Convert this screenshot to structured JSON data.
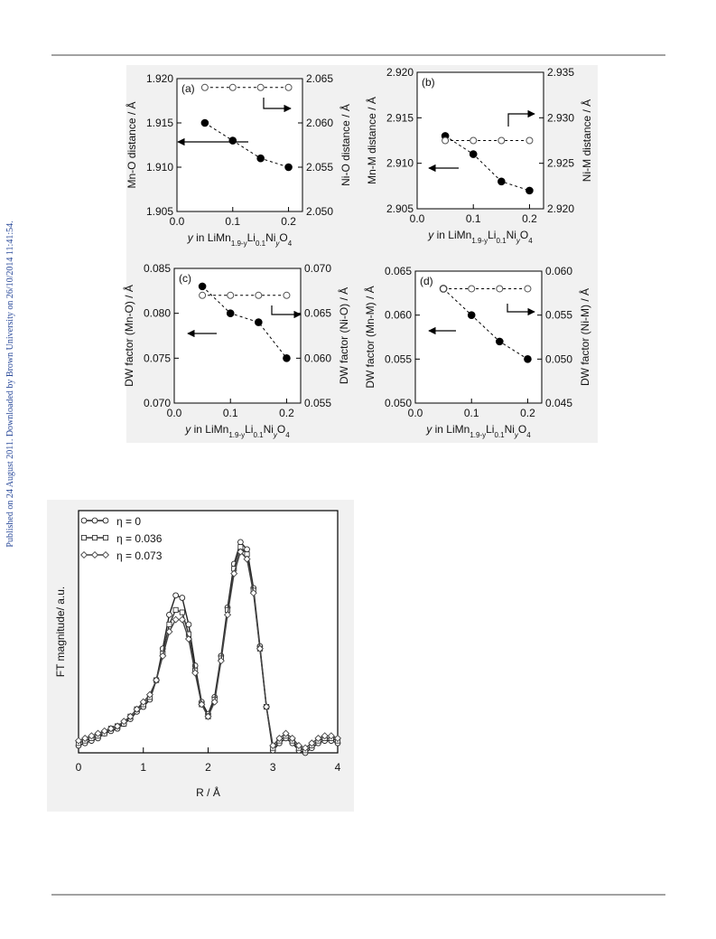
{
  "side_note": "Published on 24 August 2011. Downloaded by Brown University on 26/10/2014 11:41:54.",
  "chart_data": [
    {
      "type": "scatter",
      "panel_label": "(a)",
      "xlabel": [
        "y",
        " in LiMn",
        "1.9-y",
        "Li",
        "0.1",
        "Ni",
        "y",
        "O",
        "4"
      ],
      "ylabel": "Mn-O distance / Å",
      "y2label": "Ni-O distance / Å",
      "x": [
        0.05,
        0.1,
        0.15,
        0.2
      ],
      "xlim": [
        0,
        0.225
      ],
      "xticks": [
        {
          "value": 0,
          "label": "0.0"
        },
        0.1,
        0.2
      ],
      "ylim": [
        1.905,
        1.92
      ],
      "yticks": [
        1.905,
        {
          "value": 1.91,
          "label": "1.910"
        },
        1.915,
        {
          "value": 1.92,
          "label": "1.920"
        }
      ],
      "y2lim": [
        2.05,
        2.065
      ],
      "y2ticks": [
        {
          "value": 2.05,
          "label": "2.050"
        },
        2.055,
        {
          "value": 2.06,
          "label": "2.060"
        },
        2.065
      ],
      "series": [
        {
          "marker": "filled",
          "color": "#000000",
          "values": [
            1.915,
            1.913,
            1.911,
            1.91
          ]
        },
        {
          "marker": "open",
          "color": "#555555",
          "axis": "y2",
          "values": [
            2.064,
            2.064,
            2.064,
            2.064
          ]
        }
      ]
    },
    {
      "type": "scatter",
      "panel_label": "(b)",
      "xlabel": [
        "y",
        " in LiMn",
        "1.9-y",
        "Li",
        "0.1",
        "Ni",
        "y",
        "O",
        "4"
      ],
      "ylabel": "Mn-M distance / Å",
      "y2label": "Ni-M distance / Å",
      "x": [
        0.05,
        0.1,
        0.15,
        0.2
      ],
      "xlim": [
        0,
        0.225
      ],
      "xticks": [
        {
          "value": 0,
          "label": "0.0"
        },
        0.1,
        0.2
      ],
      "ylim": [
        2.905,
        2.92
      ],
      "yticks": [
        2.905,
        {
          "value": 2.91,
          "label": "2.910"
        },
        2.915,
        {
          "value": 2.92,
          "label": "2.920"
        }
      ],
      "y2lim": [
        2.92,
        2.935
      ],
      "y2ticks": [
        {
          "value": 2.92,
          "label": "2.920"
        },
        2.925,
        {
          "value": 2.93,
          "label": "2.930"
        },
        2.935
      ],
      "series": [
        {
          "marker": "filled",
          "color": "#000000",
          "values": [
            2.913,
            2.911,
            2.908,
            2.907
          ]
        },
        {
          "marker": "open",
          "color": "#555555",
          "axis": "y2",
          "values": [
            2.9275,
            2.9275,
            2.9275,
            2.9275
          ]
        }
      ]
    },
    {
      "type": "scatter",
      "panel_label": "(c)",
      "xlabel": [
        "y",
        " in LiMn",
        "1.9-y",
        "Li",
        "0.1",
        "Ni",
        "y",
        "O",
        "4"
      ],
      "ylabel": "DW factor (Mn-O) / Å",
      "y2label": "DW factor (Ni-O) / Å",
      "x": [
        0.05,
        0.1,
        0.15,
        0.2
      ],
      "xlim": [
        0,
        0.225
      ],
      "xticks": [
        {
          "value": 0,
          "label": "0.0"
        },
        0.1,
        0.2
      ],
      "ylim": [
        0.07,
        0.085
      ],
      "yticks": [
        {
          "value": 0.07,
          "label": "0.070"
        },
        0.075,
        {
          "value": 0.08,
          "label": "0.080"
        },
        0.085
      ],
      "y2lim": [
        0.055,
        0.07
      ],
      "y2ticks": [
        0.055,
        {
          "value": 0.06,
          "label": "0.060"
        },
        0.065,
        {
          "value": 0.07,
          "label": "0.070"
        }
      ],
      "series": [
        {
          "marker": "filled",
          "color": "#000000",
          "values": [
            0.083,
            0.08,
            0.079,
            0.075
          ]
        },
        {
          "marker": "open",
          "color": "#555555",
          "axis": "y2",
          "values": [
            0.067,
            0.067,
            0.067,
            0.067
          ]
        }
      ]
    },
    {
      "type": "scatter",
      "panel_label": "(d)",
      "xlabel": [
        "y",
        " in LiMn",
        "1.9-y",
        "Li",
        "0.1",
        "Ni",
        "y",
        "O",
        "4"
      ],
      "ylabel": "DW factor (Mn-M) / Å",
      "y2label": "DW factor (Ni-M) / Å",
      "x": [
        0.05,
        0.1,
        0.15,
        0.2
      ],
      "xlim": [
        0,
        0.225
      ],
      "xticks": [
        {
          "value": 0,
          "label": "0.0"
        },
        0.1,
        0.2
      ],
      "ylim": [
        0.05,
        0.065
      ],
      "yticks": [
        {
          "value": 0.05,
          "label": "0.050"
        },
        0.055,
        {
          "value": 0.06,
          "label": "0.060"
        },
        0.065
      ],
      "y2lim": [
        0.045,
        0.06
      ],
      "y2ticks": [
        0.045,
        {
          "value": 0.05,
          "label": "0.050"
        },
        0.055,
        {
          "value": 0.06,
          "label": "0.060"
        }
      ],
      "series": [
        {
          "marker": "filled",
          "color": "#000000",
          "values": [
            0.063,
            0.06,
            0.057,
            0.055
          ]
        },
        {
          "marker": "open",
          "color": "#555555",
          "axis": "y2",
          "values": [
            0.058,
            0.058,
            0.058,
            0.058
          ]
        }
      ]
    },
    {
      "type": "line",
      "xlabel": "R / Å",
      "ylabel": "FT magnitude/ a.u.",
      "x": [
        0,
        0.1,
        0.2,
        0.3,
        0.4,
        0.5,
        0.6,
        0.7,
        0.8,
        0.9,
        1,
        1.1,
        1.2,
        1.3,
        1.4,
        1.5,
        1.6,
        1.7,
        1.8,
        1.9,
        2,
        2.1,
        2.2,
        2.3,
        2.4,
        2.5,
        2.6,
        2.7,
        2.8,
        2.9,
        3,
        3.1,
        3.2,
        3.3,
        3.4,
        3.5,
        3.6,
        3.7,
        3.8,
        3.9,
        4
      ],
      "xlim": [
        0,
        4
      ],
      "xticks": [
        0,
        1,
        2,
        3,
        4
      ],
      "ylim": [
        0,
        1
      ],
      "series": [
        {
          "name": "η = 0",
          "marker": "circle",
          "color": "#222222",
          "values": [
            0.03,
            0.04,
            0.05,
            0.06,
            0.08,
            0.09,
            0.1,
            0.12,
            0.14,
            0.17,
            0.19,
            0.22,
            0.3,
            0.43,
            0.57,
            0.65,
            0.64,
            0.53,
            0.36,
            0.21,
            0.16,
            0.23,
            0.4,
            0.6,
            0.78,
            0.87,
            0.84,
            0.68,
            0.44,
            0.19,
            0.01,
            0.04,
            0.06,
            0.04,
            0.01,
            0,
            0.02,
            0.04,
            0.05,
            0.05,
            0.04
          ]
        },
        {
          "name": "η = 0.036",
          "marker": "square",
          "color": "#333333",
          "values": [
            0.04,
            0.05,
            0.06,
            0.07,
            0.08,
            0.1,
            0.11,
            0.12,
            0.15,
            0.18,
            0.2,
            0.23,
            0.3,
            0.41,
            0.53,
            0.59,
            0.58,
            0.49,
            0.34,
            0.2,
            0.15,
            0.22,
            0.39,
            0.59,
            0.76,
            0.85,
            0.82,
            0.67,
            0.43,
            0.19,
            0.02,
            0.05,
            0.07,
            0.05,
            0.02,
            0.01,
            0.03,
            0.05,
            0.06,
            0.06,
            0.05
          ]
        },
        {
          "name": "η = 0.073",
          "marker": "diamond",
          "color": "#444444",
          "values": [
            0.05,
            0.06,
            0.07,
            0.08,
            0.09,
            0.1,
            0.11,
            0.13,
            0.15,
            0.18,
            0.21,
            0.24,
            0.3,
            0.4,
            0.5,
            0.55,
            0.55,
            0.47,
            0.33,
            0.2,
            0.15,
            0.21,
            0.38,
            0.57,
            0.74,
            0.83,
            0.8,
            0.66,
            0.43,
            0.19,
            0.03,
            0.06,
            0.08,
            0.06,
            0.03,
            0.02,
            0.04,
            0.06,
            0.07,
            0.07,
            0.06
          ]
        }
      ]
    }
  ]
}
